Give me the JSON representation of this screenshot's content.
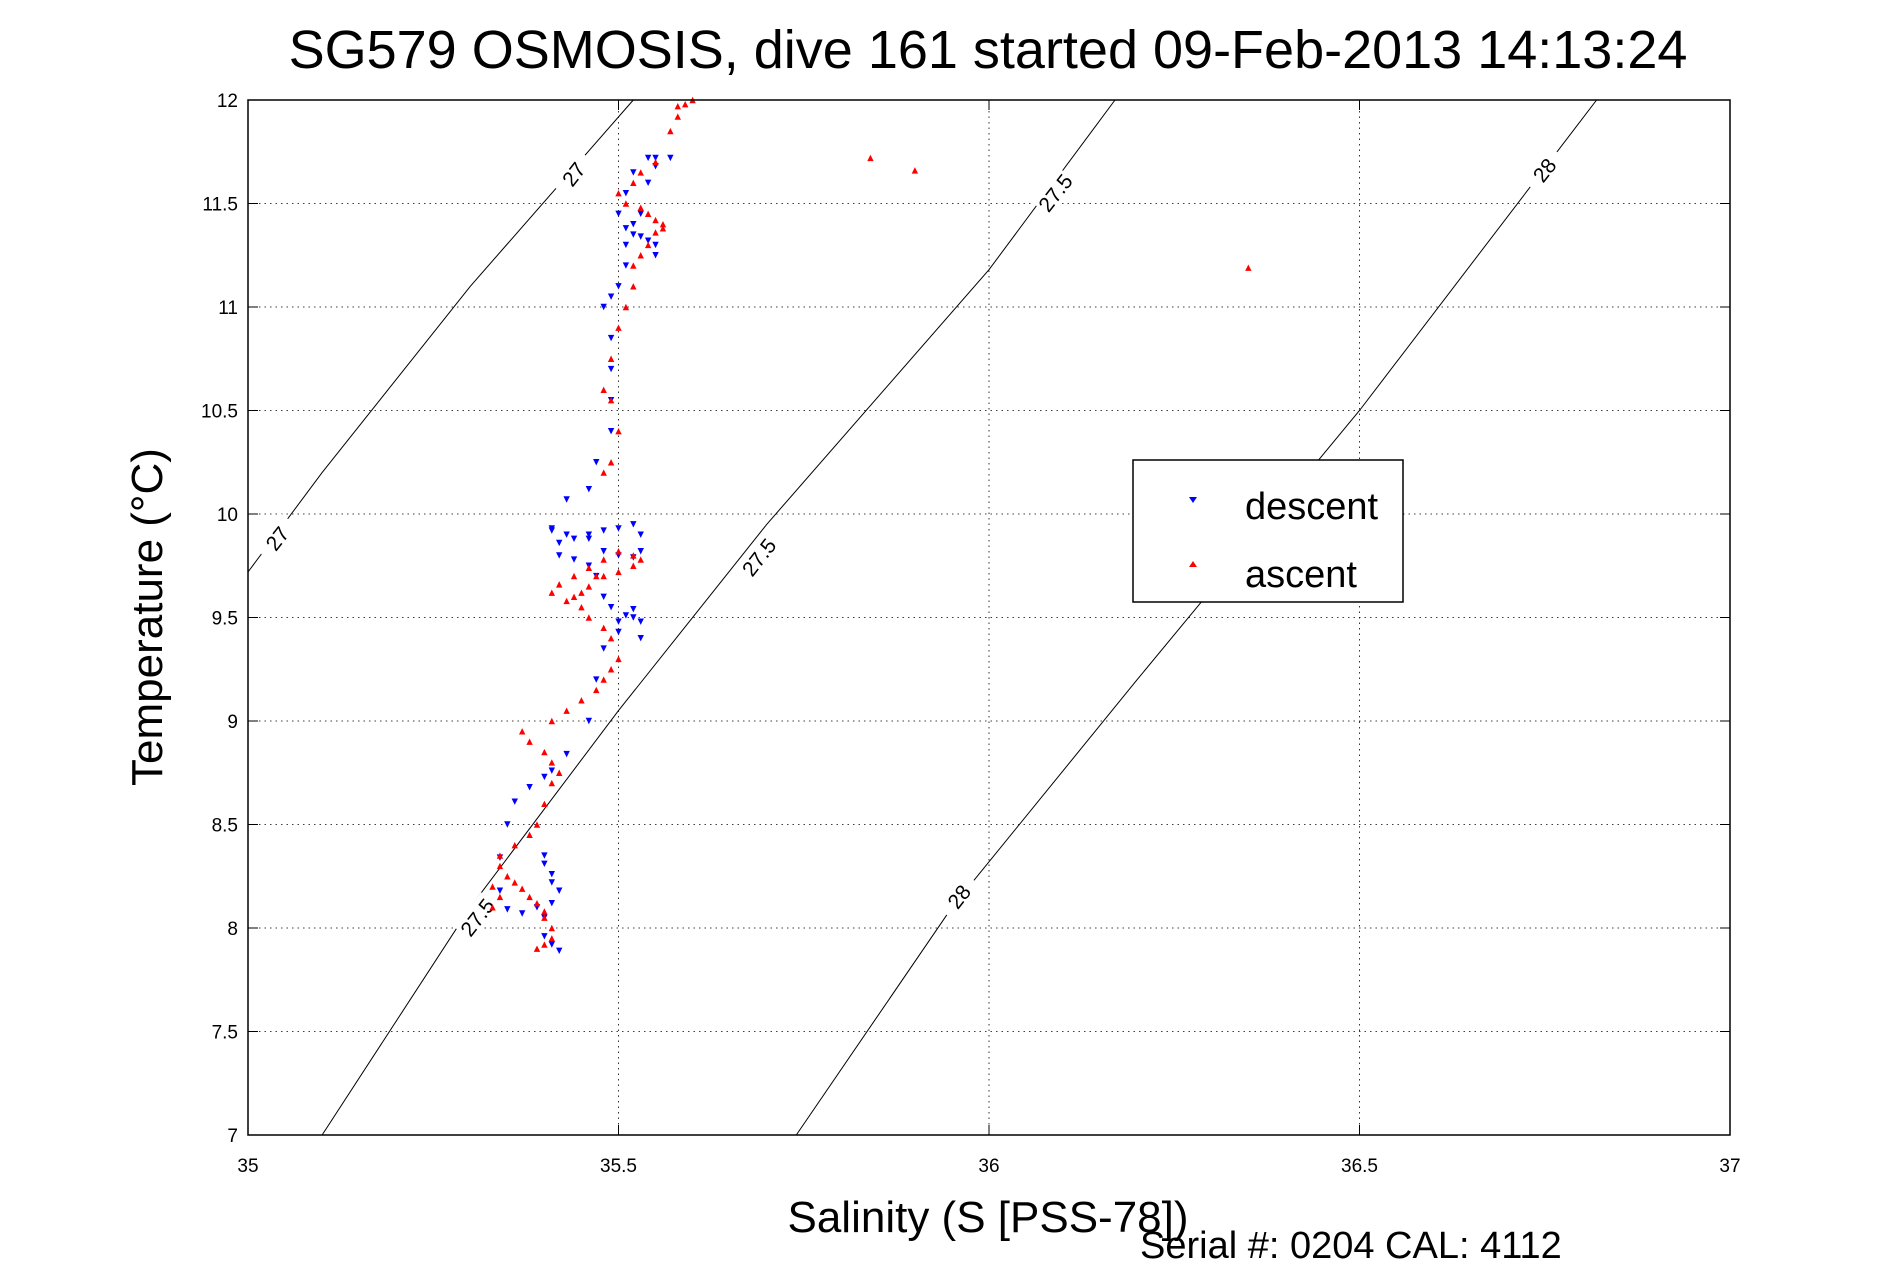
{
  "chart_data": {
    "type": "scatter",
    "title": "SG579 OSMOSIS, dive 161 started 09-Feb-2013 14:13:24",
    "xlabel": "Salinity (S [PSS-78])",
    "ylabel": "Temperature (°C)",
    "xlim": [
      35,
      37
    ],
    "ylim": [
      7,
      12
    ],
    "xticks": [
      "35",
      "35.5",
      "36",
      "36.5",
      "37"
    ],
    "yticks": [
      "7",
      "7.5",
      "8",
      "8.5",
      "9",
      "9.5",
      "10",
      "10.5",
      "11",
      "11.5",
      "12"
    ],
    "grid": true,
    "legend_position": "center-right",
    "series": [
      {
        "name": "descent",
        "color": "#0000ff",
        "marker": "triangle-down",
        "x": [
          35.42,
          35.41,
          35.4,
          35.4,
          35.41,
          35.42,
          35.41,
          35.41,
          35.4,
          35.4,
          35.39,
          35.37,
          35.35,
          35.34,
          35.34,
          35.35,
          35.36,
          35.38,
          35.4,
          35.41,
          35.43,
          35.46,
          35.47,
          35.48,
          35.5,
          35.52,
          35.53,
          35.53,
          35.52,
          35.51,
          35.5,
          35.49,
          35.48,
          35.47,
          35.46,
          35.44,
          35.42,
          35.41,
          35.43,
          35.46,
          35.48,
          35.5,
          35.52,
          35.53,
          35.53,
          35.52,
          35.5,
          35.48,
          35.46,
          35.44,
          35.42,
          35.41,
          35.43,
          35.46,
          35.47,
          35.49,
          35.49,
          35.49,
          35.49,
          35.48,
          35.49,
          35.5,
          35.51,
          35.51,
          35.52,
          35.52,
          35.53,
          35.54,
          35.55,
          35.55,
          35.54,
          35.52,
          35.51,
          35.5,
          35.51,
          35.53,
          35.54,
          35.55,
          35.55,
          35.57
        ],
        "y": [
          7.89,
          7.92,
          7.96,
          8.05,
          8.12,
          8.18,
          8.22,
          8.26,
          8.31,
          8.35,
          8.1,
          8.07,
          8.09,
          8.18,
          8.34,
          8.5,
          8.61,
          8.68,
          8.73,
          8.76,
          8.84,
          9.0,
          9.2,
          9.35,
          9.43,
          9.5,
          9.48,
          9.4,
          9.54,
          9.51,
          9.48,
          9.55,
          9.6,
          9.7,
          9.75,
          9.78,
          9.8,
          9.92,
          9.9,
          9.88,
          9.82,
          9.8,
          9.79,
          9.82,
          9.9,
          9.95,
          9.93,
          9.92,
          9.9,
          9.88,
          9.86,
          9.93,
          10.07,
          10.12,
          10.25,
          10.4,
          10.55,
          10.7,
          10.85,
          11.0,
          11.05,
          11.1,
          11.2,
          11.3,
          11.35,
          11.4,
          11.45,
          11.6,
          11.68,
          11.72,
          11.72,
          11.65,
          11.55,
          11.45,
          11.38,
          11.34,
          11.32,
          11.3,
          11.25,
          11.72
        ]
      },
      {
        "name": "ascent",
        "color": "#ff0000",
        "marker": "triangle-up",
        "x": [
          35.39,
          35.4,
          35.41,
          35.41,
          35.4,
          35.4,
          35.39,
          35.38,
          35.37,
          35.36,
          35.35,
          35.34,
          35.34,
          35.33,
          35.33,
          35.34,
          35.36,
          35.38,
          35.39,
          35.4,
          35.41,
          35.42,
          35.41,
          35.4,
          35.38,
          35.37,
          35.41,
          35.43,
          35.45,
          35.47,
          35.48,
          35.49,
          35.5,
          35.49,
          35.48,
          35.46,
          35.45,
          35.44,
          35.46,
          35.48,
          35.5,
          35.52,
          35.53,
          35.52,
          35.5,
          35.48,
          35.46,
          35.44,
          35.42,
          35.41,
          35.43,
          35.45,
          35.47,
          35.48,
          35.49,
          35.5,
          35.49,
          35.48,
          35.49,
          35.5,
          35.51,
          35.52,
          35.52,
          35.53,
          35.54,
          35.55,
          35.56,
          35.56,
          35.55,
          35.54,
          35.53,
          35.51,
          35.5,
          35.52,
          35.53,
          35.55,
          35.57,
          35.58,
          35.59,
          35.58,
          35.6,
          35.84,
          35.9,
          36.35
        ],
        "y": [
          7.9,
          7.92,
          7.95,
          8.0,
          8.05,
          8.08,
          8.12,
          8.15,
          8.19,
          8.22,
          8.25,
          8.3,
          8.15,
          8.1,
          8.2,
          8.35,
          8.4,
          8.45,
          8.5,
          8.6,
          8.7,
          8.75,
          8.8,
          8.85,
          8.9,
          8.95,
          9.0,
          9.05,
          9.1,
          9.15,
          9.2,
          9.25,
          9.3,
          9.4,
          9.45,
          9.5,
          9.55,
          9.6,
          9.65,
          9.7,
          9.72,
          9.75,
          9.78,
          9.8,
          9.82,
          9.78,
          9.74,
          9.7,
          9.66,
          9.62,
          9.58,
          9.62,
          9.7,
          10.2,
          10.25,
          10.4,
          10.55,
          10.6,
          10.75,
          10.9,
          11.0,
          11.1,
          11.2,
          11.25,
          11.3,
          11.36,
          11.38,
          11.4,
          11.42,
          11.45,
          11.48,
          11.5,
          11.55,
          11.6,
          11.65,
          11.7,
          11.85,
          11.92,
          11.98,
          11.97,
          12.0,
          11.72,
          11.66,
          11.19
        ]
      }
    ],
    "contours": [
      {
        "label": "27",
        "points": [
          [
            35.0,
            9.72
          ],
          [
            35.1,
            10.2
          ],
          [
            35.3,
            11.1
          ],
          [
            35.52,
            12.0
          ]
        ]
      },
      {
        "label": "27.5",
        "points": [
          [
            35.1,
            7.0
          ],
          [
            35.3,
            8.1
          ],
          [
            35.5,
            9.05
          ],
          [
            35.7,
            9.95
          ],
          [
            36.0,
            11.18
          ],
          [
            36.17,
            12.0
          ]
        ]
      },
      {
        "label": "28",
        "points": [
          [
            35.74,
            7.0
          ],
          [
            35.95,
            8.1
          ],
          [
            36.2,
            9.2
          ],
          [
            36.5,
            10.5
          ],
          [
            36.82,
            12.0
          ]
        ]
      }
    ],
    "contour_labels": [
      {
        "text": "27",
        "x": 35.44,
        "y": 11.64,
        "angle": -52
      },
      {
        "text": "27",
        "x": 35.04,
        "y": 9.88,
        "angle": -52
      },
      {
        "text": "27.5",
        "x": 36.09,
        "y": 11.55,
        "angle": -52
      },
      {
        "text": "27.5",
        "x": 35.69,
        "y": 9.79,
        "angle": -52
      },
      {
        "text": "27.5",
        "x": 35.31,
        "y": 8.05,
        "angle": -52
      },
      {
        "text": "28",
        "x": 36.75,
        "y": 11.66,
        "angle": -52
      },
      {
        "text": "28",
        "x": 35.96,
        "y": 8.15,
        "angle": -52
      }
    ]
  },
  "footer": {
    "serial": "Serial #: 0204  CAL: 4112"
  }
}
